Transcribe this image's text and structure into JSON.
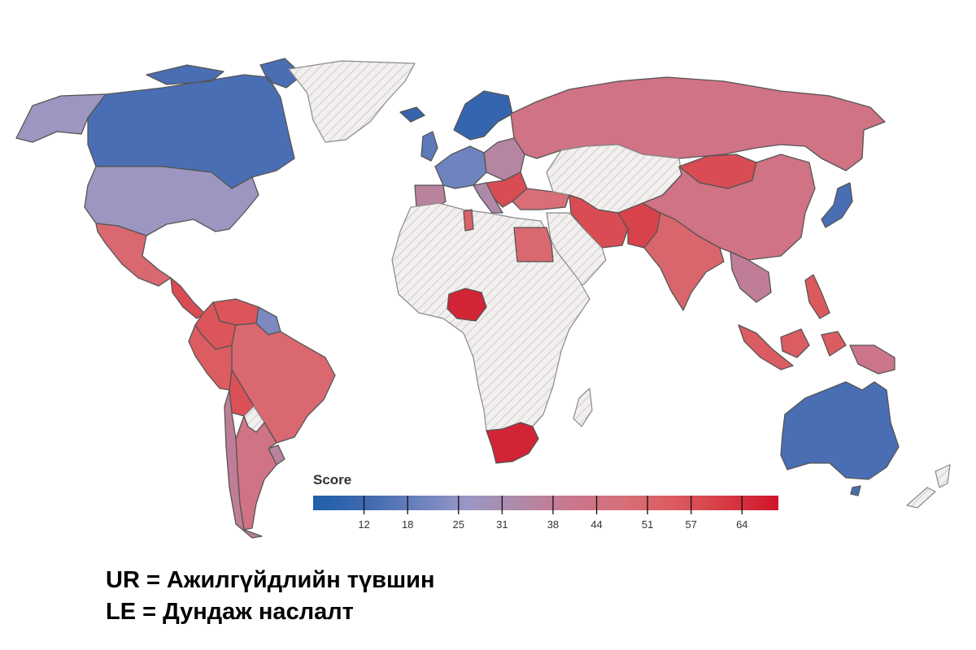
{
  "legend": {
    "title": "Score",
    "ticks": [
      12,
      18,
      25,
      31,
      38,
      44,
      51,
      57,
      64
    ],
    "range": [
      5,
      69
    ],
    "colors": [
      "#1f5faa",
      "#3e68b0",
      "#6a80bd",
      "#9a97c4",
      "#b089a6",
      "#c9778e",
      "#d76f79",
      "#dc5b5f",
      "#d63a44",
      "#d0142b"
    ]
  },
  "countries": [
    {
      "name": "Canada",
      "score": 14
    },
    {
      "name": "United States",
      "score": 27
    },
    {
      "name": "Alaska",
      "score": 27
    },
    {
      "name": "Greenland",
      "score": null
    },
    {
      "name": "Mexico",
      "score": 50
    },
    {
      "name": "Central America",
      "score": 58
    },
    {
      "name": "Colombia",
      "score": 56
    },
    {
      "name": "Venezuela",
      "score": 56
    },
    {
      "name": "Guyana",
      "score": 22
    },
    {
      "name": "Suriname",
      "score": null
    },
    {
      "name": "Brazil",
      "score": 50
    },
    {
      "name": "Peru",
      "score": 54
    },
    {
      "name": "Bolivia",
      "score": 57
    },
    {
      "name": "Paraguay",
      "score": null
    },
    {
      "name": "Chile",
      "score": 38
    },
    {
      "name": "Argentina",
      "score": 44
    },
    {
      "name": "Uruguay",
      "score": 36
    },
    {
      "name": "Iceland",
      "score": 10
    },
    {
      "name": "Scandinavia",
      "score": 10
    },
    {
      "name": "United Kingdom",
      "score": 17
    },
    {
      "name": "Western Europe",
      "score": 20
    },
    {
      "name": "Iberia",
      "score": 36
    },
    {
      "name": "Eastern Europe",
      "score": 35
    },
    {
      "name": "Balkans",
      "score": 58
    },
    {
      "name": "Italy",
      "score": 33
    },
    {
      "name": "Russia",
      "score": 44
    },
    {
      "name": "Turkey",
      "score": 48
    },
    {
      "name": "Iran",
      "score": 58
    },
    {
      "name": "Pakistan",
      "score": 60
    },
    {
      "name": "India",
      "score": 51
    },
    {
      "name": "China",
      "score": 44
    },
    {
      "name": "Mongolia",
      "score": 58
    },
    {
      "name": "Japan",
      "score": 14
    },
    {
      "name": "Southeast Asia",
      "score": 38
    },
    {
      "name": "Philippines",
      "score": 55
    },
    {
      "name": "Indonesia",
      "score": 54
    },
    {
      "name": "Papua New Guinea",
      "score": 42
    },
    {
      "name": "Egypt",
      "score": 50
    },
    {
      "name": "Tunisia",
      "score": 52
    },
    {
      "name": "Nigeria",
      "score": 66
    },
    {
      "name": "South Africa",
      "score": 66
    },
    {
      "name": "Africa (other)",
      "score": null
    },
    {
      "name": "Central Asia",
      "score": null
    },
    {
      "name": "Arabia",
      "score": null
    },
    {
      "name": "Australia",
      "score": 14
    },
    {
      "name": "New Zealand",
      "score": null
    }
  ],
  "notes": [
    "UR = Ажилгүйдлийн түвшин",
    "LE = Дундаж наслалт"
  ]
}
